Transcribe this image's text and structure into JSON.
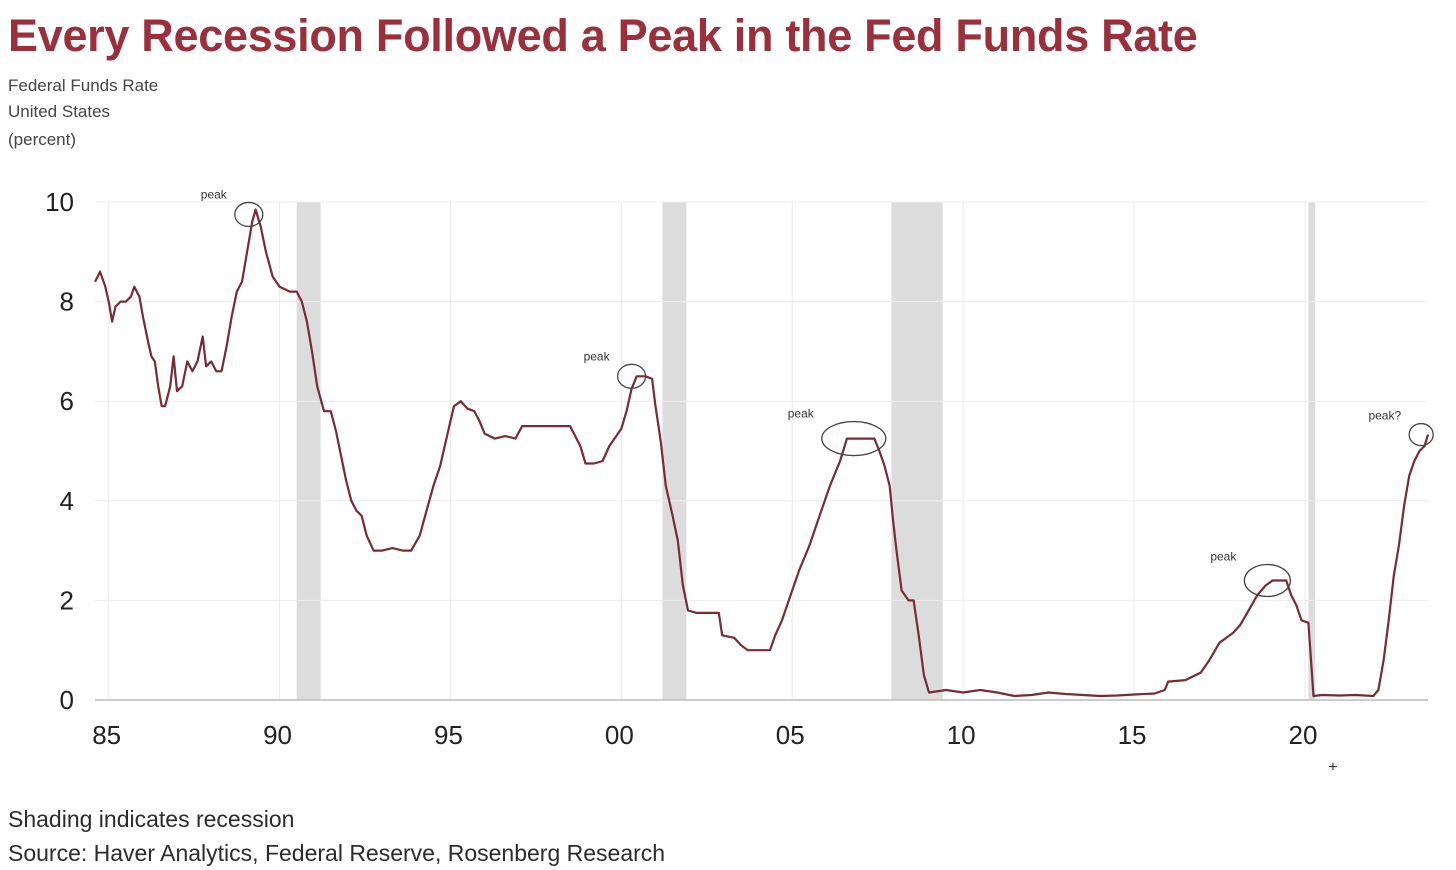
{
  "title": "Every Recession Followed a Peak in the Fed Funds Rate",
  "subtitle_lines": [
    "Federal Funds Rate",
    "United States",
    "(percent)"
  ],
  "footnotes": [
    "Shading indicates recession",
    "Source: Haver Analytics, Federal Reserve, Rosenberg Research"
  ],
  "colors": {
    "title": "#9b2f3b",
    "line": "#7a2a33",
    "recession": "#dcdcdc",
    "grid": "#ececec"
  },
  "chart_data": {
    "type": "line",
    "title": "Every Recession Followed a Peak in the Fed Funds Rate",
    "xlabel": "",
    "ylabel": "Federal Funds Rate United States (percent)",
    "xlim": [
      1984.6,
      2023.6
    ],
    "ylim": [
      0,
      10
    ],
    "x_ticks": [
      1985,
      1990,
      1995,
      2000,
      2005,
      2010,
      2015,
      2020
    ],
    "x_tick_labels": [
      "85",
      "90",
      "95",
      "00",
      "05",
      "10",
      "15",
      "20"
    ],
    "x_tick_marker": "+",
    "y_ticks": [
      0,
      2,
      4,
      6,
      8,
      10
    ],
    "y_tick_labels": [
      "0",
      "2",
      "4",
      "6",
      "8",
      "10"
    ],
    "grid": true,
    "recessions": [
      [
        1990.5,
        1991.2
      ],
      [
        2001.2,
        2001.9
      ],
      [
        2007.9,
        2009.4
      ],
      [
        2020.1,
        2020.3
      ]
    ],
    "annotations": [
      {
        "text": "peak",
        "x": 1989.1,
        "y": 9.75
      },
      {
        "text": "peak",
        "x": 2000.3,
        "y": 6.5
      },
      {
        "text": "peak",
        "x": 2006.8,
        "y": 5.25
      },
      {
        "text": "peak",
        "x": 2018.9,
        "y": 2.4
      },
      {
        "text": "peak?",
        "x": 2023.4,
        "y": 5.33
      }
    ],
    "series": [
      {
        "name": "Federal Funds Rate",
        "points": [
          [
            1984.6,
            8.4
          ],
          [
            1984.75,
            8.6
          ],
          [
            1984.9,
            8.3
          ],
          [
            1985.0,
            8.0
          ],
          [
            1985.1,
            7.6
          ],
          [
            1985.2,
            7.9
          ],
          [
            1985.35,
            8.0
          ],
          [
            1985.5,
            8.0
          ],
          [
            1985.65,
            8.1
          ],
          [
            1985.75,
            8.3
          ],
          [
            1985.9,
            8.1
          ],
          [
            1986.0,
            7.7
          ],
          [
            1986.15,
            7.2
          ],
          [
            1986.25,
            6.9
          ],
          [
            1986.35,
            6.8
          ],
          [
            1986.45,
            6.3
          ],
          [
            1986.55,
            5.9
          ],
          [
            1986.65,
            5.9
          ],
          [
            1986.8,
            6.3
          ],
          [
            1986.9,
            6.9
          ],
          [
            1987.0,
            6.2
          ],
          [
            1987.15,
            6.3
          ],
          [
            1987.3,
            6.8
          ],
          [
            1987.45,
            6.6
          ],
          [
            1987.6,
            6.8
          ],
          [
            1987.75,
            7.3
          ],
          [
            1987.85,
            6.7
          ],
          [
            1988.0,
            6.8
          ],
          [
            1988.15,
            6.6
          ],
          [
            1988.3,
            6.6
          ],
          [
            1988.45,
            7.1
          ],
          [
            1988.6,
            7.7
          ],
          [
            1988.75,
            8.2
          ],
          [
            1988.9,
            8.4
          ],
          [
            1989.05,
            9.0
          ],
          [
            1989.2,
            9.6
          ],
          [
            1989.3,
            9.85
          ],
          [
            1989.45,
            9.5
          ],
          [
            1989.6,
            9.0
          ],
          [
            1989.8,
            8.5
          ],
          [
            1990.0,
            8.3
          ],
          [
            1990.3,
            8.2
          ],
          [
            1990.5,
            8.2
          ],
          [
            1990.65,
            8.0
          ],
          [
            1990.8,
            7.6
          ],
          [
            1990.95,
            7.0
          ],
          [
            1991.1,
            6.3
          ],
          [
            1991.3,
            5.8
          ],
          [
            1991.5,
            5.8
          ],
          [
            1991.65,
            5.4
          ],
          [
            1991.8,
            4.9
          ],
          [
            1991.95,
            4.4
          ],
          [
            1992.1,
            4.0
          ],
          [
            1992.25,
            3.8
          ],
          [
            1992.4,
            3.7
          ],
          [
            1992.55,
            3.3
          ],
          [
            1992.75,
            3.0
          ],
          [
            1993.0,
            3.0
          ],
          [
            1993.3,
            3.05
          ],
          [
            1993.6,
            3.0
          ],
          [
            1993.85,
            3.0
          ],
          [
            1994.1,
            3.3
          ],
          [
            1994.3,
            3.8
          ],
          [
            1994.5,
            4.3
          ],
          [
            1994.7,
            4.7
          ],
          [
            1994.9,
            5.3
          ],
          [
            1995.1,
            5.9
          ],
          [
            1995.3,
            6.0
          ],
          [
            1995.5,
            5.85
          ],
          [
            1995.7,
            5.8
          ],
          [
            1995.85,
            5.6
          ],
          [
            1996.0,
            5.35
          ],
          [
            1996.3,
            5.25
          ],
          [
            1996.6,
            5.3
          ],
          [
            1996.9,
            5.25
          ],
          [
            1997.1,
            5.5
          ],
          [
            1997.5,
            5.5
          ],
          [
            1997.9,
            5.5
          ],
          [
            1998.2,
            5.5
          ],
          [
            1998.5,
            5.5
          ],
          [
            1998.8,
            5.1
          ],
          [
            1998.95,
            4.75
          ],
          [
            1999.2,
            4.75
          ],
          [
            1999.45,
            4.8
          ],
          [
            1999.65,
            5.1
          ],
          [
            1999.85,
            5.3
          ],
          [
            2000.0,
            5.45
          ],
          [
            2000.15,
            5.8
          ],
          [
            2000.3,
            6.25
          ],
          [
            2000.45,
            6.5
          ],
          [
            2000.7,
            6.5
          ],
          [
            2000.9,
            6.45
          ],
          [
            2001.0,
            5.9
          ],
          [
            2001.15,
            5.2
          ],
          [
            2001.3,
            4.3
          ],
          [
            2001.5,
            3.7
          ],
          [
            2001.65,
            3.2
          ],
          [
            2001.8,
            2.3
          ],
          [
            2001.95,
            1.8
          ],
          [
            2002.2,
            1.75
          ],
          [
            2002.5,
            1.75
          ],
          [
            2002.85,
            1.75
          ],
          [
            2002.95,
            1.3
          ],
          [
            2003.3,
            1.25
          ],
          [
            2003.5,
            1.1
          ],
          [
            2003.7,
            1.0
          ],
          [
            2004.0,
            1.0
          ],
          [
            2004.35,
            1.0
          ],
          [
            2004.5,
            1.3
          ],
          [
            2004.7,
            1.6
          ],
          [
            2004.9,
            2.0
          ],
          [
            2005.2,
            2.6
          ],
          [
            2005.5,
            3.1
          ],
          [
            2005.8,
            3.7
          ],
          [
            2006.1,
            4.3
          ],
          [
            2006.4,
            4.8
          ],
          [
            2006.6,
            5.25
          ],
          [
            2007.0,
            5.25
          ],
          [
            2007.4,
            5.25
          ],
          [
            2007.55,
            5.0
          ],
          [
            2007.7,
            4.7
          ],
          [
            2007.85,
            4.3
          ],
          [
            2007.95,
            3.6
          ],
          [
            2008.05,
            3.0
          ],
          [
            2008.2,
            2.2
          ],
          [
            2008.4,
            2.0
          ],
          [
            2008.55,
            2.0
          ],
          [
            2008.7,
            1.3
          ],
          [
            2008.85,
            0.5
          ],
          [
            2009.0,
            0.15
          ],
          [
            2009.5,
            0.2
          ],
          [
            2010.0,
            0.15
          ],
          [
            2010.5,
            0.2
          ],
          [
            2011.0,
            0.15
          ],
          [
            2011.5,
            0.08
          ],
          [
            2012.0,
            0.1
          ],
          [
            2012.5,
            0.15
          ],
          [
            2013.0,
            0.12
          ],
          [
            2013.5,
            0.1
          ],
          [
            2014.0,
            0.08
          ],
          [
            2014.5,
            0.09
          ],
          [
            2015.0,
            0.11
          ],
          [
            2015.6,
            0.13
          ],
          [
            2015.9,
            0.2
          ],
          [
            2016.0,
            0.37
          ],
          [
            2016.5,
            0.4
          ],
          [
            2016.95,
            0.55
          ],
          [
            2017.2,
            0.8
          ],
          [
            2017.5,
            1.15
          ],
          [
            2017.9,
            1.35
          ],
          [
            2018.1,
            1.5
          ],
          [
            2018.35,
            1.8
          ],
          [
            2018.6,
            2.1
          ],
          [
            2018.85,
            2.3
          ],
          [
            2019.05,
            2.4
          ],
          [
            2019.45,
            2.4
          ],
          [
            2019.6,
            2.1
          ],
          [
            2019.75,
            1.9
          ],
          [
            2019.9,
            1.6
          ],
          [
            2020.1,
            1.55
          ],
          [
            2020.25,
            0.08
          ],
          [
            2020.5,
            0.1
          ],
          [
            2021.0,
            0.09
          ],
          [
            2021.5,
            0.1
          ],
          [
            2022.0,
            0.08
          ],
          [
            2022.15,
            0.2
          ],
          [
            2022.3,
            0.8
          ],
          [
            2022.45,
            1.6
          ],
          [
            2022.6,
            2.5
          ],
          [
            2022.75,
            3.1
          ],
          [
            2022.9,
            3.9
          ],
          [
            2023.05,
            4.5
          ],
          [
            2023.2,
            4.8
          ],
          [
            2023.35,
            5.0
          ],
          [
            2023.5,
            5.1
          ],
          [
            2023.6,
            5.33
          ]
        ]
      }
    ]
  }
}
